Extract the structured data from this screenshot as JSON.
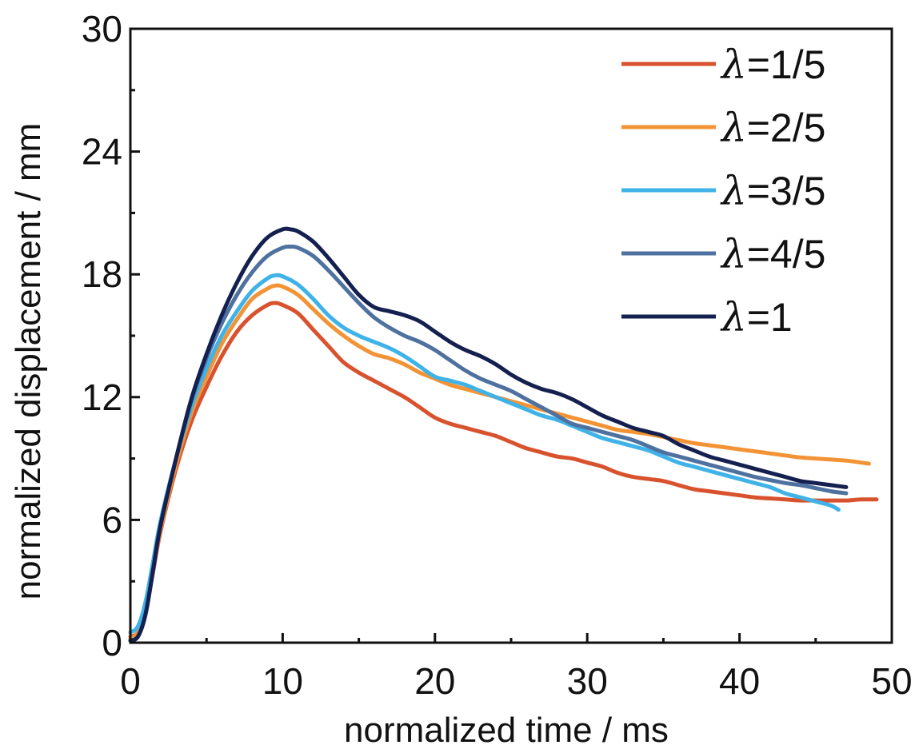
{
  "chart_data": {
    "type": "line",
    "xlabel": "normalized time / ms",
    "ylabel": "normalized displacement / mm",
    "xlim": [
      0,
      50
    ],
    "ylim": [
      0,
      30
    ],
    "xticks": [
      0,
      10,
      20,
      30,
      40,
      50
    ],
    "yticks": [
      0,
      6,
      12,
      18,
      24,
      30
    ],
    "grid": false,
    "legend_position": "top-right",
    "series": [
      {
        "name": "λ=1/5",
        "legend_symbol": "λ",
        "legend_suffix": "=1/5",
        "color": "#d9522e",
        "points": [
          [
            0,
            0.3
          ],
          [
            0.5,
            0.5
          ],
          [
            1,
            1.5
          ],
          [
            1.5,
            3.5
          ],
          [
            2,
            5.5
          ],
          [
            3,
            8.5
          ],
          [
            4,
            10.8
          ],
          [
            5,
            12.5
          ],
          [
            6,
            14
          ],
          [
            7,
            15.2
          ],
          [
            8,
            16
          ],
          [
            9,
            16.5
          ],
          [
            9.5,
            16.6
          ],
          [
            10,
            16.5
          ],
          [
            11,
            16.1
          ],
          [
            12,
            15.3
          ],
          [
            13,
            14.5
          ],
          [
            14,
            13.7
          ],
          [
            15,
            13.2
          ],
          [
            16,
            12.8
          ],
          [
            17,
            12.4
          ],
          [
            18,
            12
          ],
          [
            19,
            11.5
          ],
          [
            20,
            11
          ],
          [
            21,
            10.7
          ],
          [
            22,
            10.5
          ],
          [
            23,
            10.3
          ],
          [
            24,
            10.1
          ],
          [
            25,
            9.8
          ],
          [
            26,
            9.5
          ],
          [
            27,
            9.3
          ],
          [
            28,
            9.1
          ],
          [
            29,
            9
          ],
          [
            30,
            8.8
          ],
          [
            31,
            8.6
          ],
          [
            32,
            8.3
          ],
          [
            33,
            8.1
          ],
          [
            34,
            8
          ],
          [
            35,
            7.9
          ],
          [
            36,
            7.7
          ],
          [
            37,
            7.5
          ],
          [
            38,
            7.4
          ],
          [
            39,
            7.3
          ],
          [
            40,
            7.2
          ],
          [
            41,
            7.1
          ],
          [
            42,
            7.05
          ],
          [
            43,
            7
          ],
          [
            44,
            6.95
          ],
          [
            45,
            6.95
          ],
          [
            46,
            6.95
          ],
          [
            47,
            6.95
          ],
          [
            48,
            7
          ],
          [
            49,
            7
          ]
        ]
      },
      {
        "name": "λ=2/5",
        "legend_symbol": "λ",
        "legend_suffix": "=2/5",
        "color": "#f29435",
        "points": [
          [
            0,
            0.2
          ],
          [
            0.5,
            0.5
          ],
          [
            1,
            1.5
          ],
          [
            1.5,
            3.6
          ],
          [
            2,
            5.6
          ],
          [
            3,
            8.7
          ],
          [
            4,
            11.2
          ],
          [
            5,
            13
          ],
          [
            6,
            14.6
          ],
          [
            7,
            15.8
          ],
          [
            8,
            16.8
          ],
          [
            9,
            17.3
          ],
          [
            9.5,
            17.45
          ],
          [
            10,
            17.4
          ],
          [
            11,
            17
          ],
          [
            12,
            16.3
          ],
          [
            13,
            15.6
          ],
          [
            14,
            15
          ],
          [
            15,
            14.5
          ],
          [
            16,
            14.1
          ],
          [
            17,
            13.9
          ],
          [
            18,
            13.6
          ],
          [
            19,
            13.2
          ],
          [
            20,
            12.9
          ],
          [
            21,
            12.6
          ],
          [
            22,
            12.4
          ],
          [
            23,
            12.2
          ],
          [
            24,
            12
          ],
          [
            25,
            11.8
          ],
          [
            26,
            11.6
          ],
          [
            27,
            11.4
          ],
          [
            28,
            11.2
          ],
          [
            29,
            11
          ],
          [
            30,
            10.8
          ],
          [
            31,
            10.6
          ],
          [
            32,
            10.4
          ],
          [
            33,
            10.3
          ],
          [
            34,
            10.2
          ],
          [
            35,
            10.05
          ],
          [
            36,
            9.9
          ],
          [
            37,
            9.75
          ],
          [
            38,
            9.65
          ],
          [
            39,
            9.55
          ],
          [
            40,
            9.45
          ],
          [
            41,
            9.35
          ],
          [
            42,
            9.25
          ],
          [
            43,
            9.15
          ],
          [
            44,
            9.05
          ],
          [
            45,
            9
          ],
          [
            46,
            8.95
          ],
          [
            47,
            8.9
          ],
          [
            48,
            8.8
          ],
          [
            48.5,
            8.75
          ]
        ]
      },
      {
        "name": "λ=3/5",
        "legend_symbol": "λ",
        "legend_suffix": "=3/5",
        "color": "#3fb2e8",
        "points": [
          [
            0,
            0.5
          ],
          [
            0.5,
            0.8
          ],
          [
            1,
            2
          ],
          [
            1.5,
            4
          ],
          [
            2,
            6
          ],
          [
            3,
            9
          ],
          [
            4,
            11.5
          ],
          [
            5,
            13.4
          ],
          [
            6,
            15
          ],
          [
            7,
            16.2
          ],
          [
            8,
            17.2
          ],
          [
            9,
            17.8
          ],
          [
            9.5,
            17.95
          ],
          [
            10,
            17.9
          ],
          [
            11,
            17.5
          ],
          [
            12,
            16.8
          ],
          [
            13,
            16
          ],
          [
            14,
            15.4
          ],
          [
            15,
            15
          ],
          [
            16,
            14.7
          ],
          [
            17,
            14.4
          ],
          [
            18,
            14
          ],
          [
            19,
            13.5
          ],
          [
            20,
            13
          ],
          [
            21,
            12.8
          ],
          [
            22,
            12.6
          ],
          [
            23,
            12.3
          ],
          [
            24,
            12
          ],
          [
            25,
            11.7
          ],
          [
            26,
            11.4
          ],
          [
            27,
            11.1
          ],
          [
            28,
            10.9
          ],
          [
            29,
            10.6
          ],
          [
            30,
            10.3
          ],
          [
            31,
            10
          ],
          [
            32,
            9.8
          ],
          [
            33,
            9.6
          ],
          [
            34,
            9.4
          ],
          [
            35,
            9.1
          ],
          [
            36,
            8.8
          ],
          [
            37,
            8.6
          ],
          [
            38,
            8.4
          ],
          [
            39,
            8.2
          ],
          [
            40,
            8
          ],
          [
            41,
            7.8
          ],
          [
            42,
            7.6
          ],
          [
            43,
            7.3
          ],
          [
            44,
            7.1
          ],
          [
            45,
            6.9
          ],
          [
            46,
            6.7
          ],
          [
            46.5,
            6.5
          ]
        ]
      },
      {
        "name": "λ=4/5",
        "legend_symbol": "λ",
        "legend_suffix": "=4/5",
        "color": "#4e71a0",
        "points": [
          [
            0,
            0.1
          ],
          [
            0.5,
            0.3
          ],
          [
            1,
            1.4
          ],
          [
            1.5,
            3.6
          ],
          [
            2,
            5.8
          ],
          [
            3,
            9
          ],
          [
            4,
            11.8
          ],
          [
            5,
            13.9
          ],
          [
            6,
            15.6
          ],
          [
            7,
            17
          ],
          [
            8,
            18.1
          ],
          [
            9,
            18.9
          ],
          [
            10,
            19.3
          ],
          [
            10.5,
            19.35
          ],
          [
            11,
            19.3
          ],
          [
            12,
            18.9
          ],
          [
            13,
            18.2
          ],
          [
            14,
            17.4
          ],
          [
            15,
            16.6
          ],
          [
            16,
            15.9
          ],
          [
            17,
            15.4
          ],
          [
            18,
            15
          ],
          [
            19,
            14.7
          ],
          [
            20,
            14.3
          ],
          [
            21,
            13.8
          ],
          [
            22,
            13.3
          ],
          [
            23,
            12.9
          ],
          [
            24,
            12.6
          ],
          [
            25,
            12.3
          ],
          [
            26,
            11.9
          ],
          [
            27,
            11.5
          ],
          [
            28,
            11.1
          ],
          [
            29,
            10.7
          ],
          [
            30,
            10.5
          ],
          [
            31,
            10.3
          ],
          [
            32,
            10.1
          ],
          [
            33,
            9.9
          ],
          [
            34,
            9.6
          ],
          [
            35,
            9.3
          ],
          [
            36,
            9.1
          ],
          [
            37,
            8.9
          ],
          [
            38,
            8.7
          ],
          [
            39,
            8.5
          ],
          [
            40,
            8.3
          ],
          [
            41,
            8.1
          ],
          [
            42,
            7.95
          ],
          [
            43,
            7.8
          ],
          [
            44,
            7.7
          ],
          [
            45,
            7.55
          ],
          [
            46,
            7.4
          ],
          [
            47,
            7.3
          ]
        ]
      },
      {
        "name": "λ=1",
        "legend_symbol": "λ",
        "legend_suffix": "=1",
        "color": "#14204f",
        "points": [
          [
            0,
            0.1
          ],
          [
            0.5,
            0.3
          ],
          [
            1,
            1.4
          ],
          [
            1.5,
            3.6
          ],
          [
            2,
            5.8
          ],
          [
            3,
            9
          ],
          [
            4,
            11.9
          ],
          [
            5,
            14.1
          ],
          [
            6,
            16
          ],
          [
            7,
            17.6
          ],
          [
            8,
            18.9
          ],
          [
            9,
            19.8
          ],
          [
            10,
            20.2
          ],
          [
            10.5,
            20.2
          ],
          [
            11,
            20.1
          ],
          [
            12,
            19.6
          ],
          [
            13,
            18.8
          ],
          [
            14,
            17.9
          ],
          [
            15,
            17
          ],
          [
            16,
            16.4
          ],
          [
            17,
            16.2
          ],
          [
            18,
            16
          ],
          [
            19,
            15.7
          ],
          [
            20,
            15.2
          ],
          [
            21,
            14.7
          ],
          [
            22,
            14.3
          ],
          [
            23,
            14
          ],
          [
            24,
            13.6
          ],
          [
            25,
            13.1
          ],
          [
            26,
            12.7
          ],
          [
            27,
            12.4
          ],
          [
            28,
            12.2
          ],
          [
            29,
            11.9
          ],
          [
            30,
            11.5
          ],
          [
            31,
            11.1
          ],
          [
            32,
            10.8
          ],
          [
            33,
            10.5
          ],
          [
            34,
            10.3
          ],
          [
            35,
            10.1
          ],
          [
            36,
            9.7
          ],
          [
            37,
            9.4
          ],
          [
            38,
            9.1
          ],
          [
            39,
            8.9
          ],
          [
            40,
            8.7
          ],
          [
            41,
            8.5
          ],
          [
            42,
            8.3
          ],
          [
            43,
            8.1
          ],
          [
            44,
            7.9
          ],
          [
            45,
            7.8
          ],
          [
            46,
            7.7
          ],
          [
            47,
            7.6
          ]
        ]
      }
    ]
  }
}
